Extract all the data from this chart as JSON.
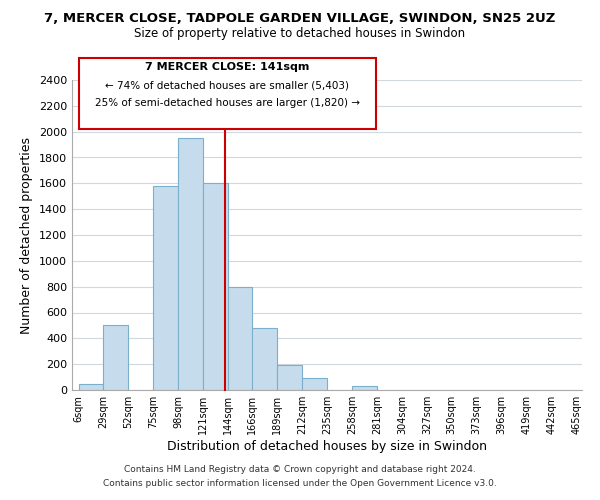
{
  "title": "7, MERCER CLOSE, TADPOLE GARDEN VILLAGE, SWINDON, SN25 2UZ",
  "subtitle": "Size of property relative to detached houses in Swindon",
  "xlabel": "Distribution of detached houses by size in Swindon",
  "ylabel": "Number of detached properties",
  "bar_color": "#c6dcec",
  "bar_edge_color": "#7ab0cc",
  "bar_left_edges": [
    6,
    29,
    52,
    75,
    98,
    121,
    144,
    166,
    189,
    212,
    235,
    258,
    281,
    304,
    327,
    350,
    373,
    396,
    419,
    442
  ],
  "bar_widths": [
    23,
    23,
    23,
    23,
    23,
    23,
    22,
    23,
    23,
    23,
    23,
    23,
    23,
    23,
    23,
    23,
    23,
    23,
    23,
    23
  ],
  "bar_heights": [
    50,
    500,
    0,
    1580,
    1950,
    1600,
    800,
    480,
    190,
    90,
    0,
    30,
    0,
    0,
    0,
    0,
    0,
    0,
    0,
    0
  ],
  "tick_labels": [
    "6sqm",
    "29sqm",
    "52sqm",
    "75sqm",
    "98sqm",
    "121sqm",
    "144sqm",
    "166sqm",
    "189sqm",
    "212sqm",
    "235sqm",
    "258sqm",
    "281sqm",
    "304sqm",
    "327sqm",
    "350sqm",
    "373sqm",
    "396sqm",
    "419sqm",
    "442sqm",
    "465sqm"
  ],
  "tick_positions": [
    6,
    29,
    52,
    75,
    98,
    121,
    144,
    166,
    189,
    212,
    235,
    258,
    281,
    304,
    327,
    350,
    373,
    396,
    419,
    442,
    465
  ],
  "ylim": [
    0,
    2400
  ],
  "xlim": [
    0,
    470
  ],
  "yticks": [
    0,
    200,
    400,
    600,
    800,
    1000,
    1200,
    1400,
    1600,
    1800,
    2000,
    2200,
    2400
  ],
  "property_line_x": 141,
  "property_line_color": "#cc0000",
  "annotation_title": "7 MERCER CLOSE: 141sqm",
  "annotation_line1": "← 74% of detached houses are smaller (5,403)",
  "annotation_line2": "25% of semi-detached houses are larger (1,820) →",
  "footer_line1": "Contains HM Land Registry data © Crown copyright and database right 2024.",
  "footer_line2": "Contains public sector information licensed under the Open Government Licence v3.0.",
  "background_color": "#ffffff",
  "grid_color": "#d0d8e0"
}
